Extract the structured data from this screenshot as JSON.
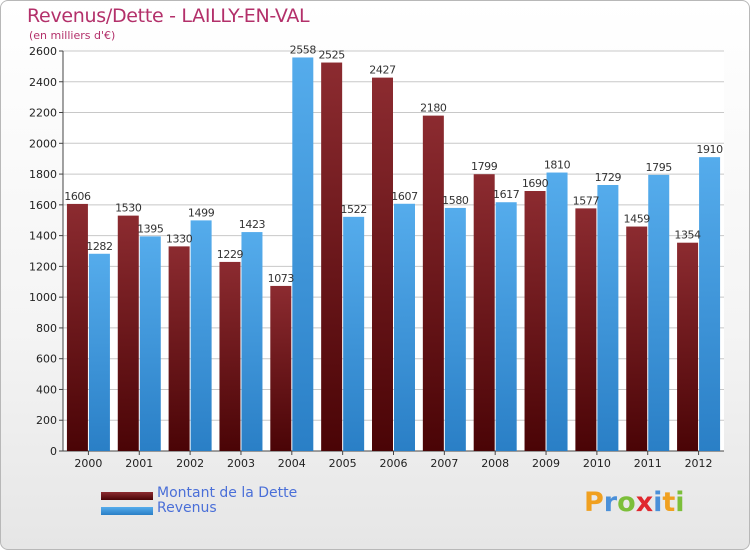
{
  "header": {
    "title": "Revenus/Dette - LAILLY-EN-VAL",
    "subtitle": "(en milliers d'€)"
  },
  "colors": {
    "dette": "#7a1a1e",
    "revenus": "#3d9be3",
    "title": "#b3306a",
    "legend_text": "#4a6fd8"
  },
  "legend": {
    "items": [
      {
        "label": "Montant de la Dette",
        "color": "#7a1a1e"
      },
      {
        "label": "Revenus",
        "color": "#3d9be3"
      }
    ]
  },
  "logo": {
    "letters": [
      "P",
      "r",
      "o",
      "x",
      "i",
      "t",
      "i"
    ],
    "colors": [
      "#f0a020",
      "#4a90d9",
      "#7cbf3a",
      "#e0282e",
      "#4a90d9",
      "#f0a020",
      "#7cbf3a"
    ]
  },
  "chart_data": {
    "type": "bar",
    "categories": [
      "2000",
      "2001",
      "2002",
      "2003",
      "2004",
      "2005",
      "2006",
      "2007",
      "2008",
      "2009",
      "2010",
      "2011",
      "2012"
    ],
    "series": [
      {
        "name": "Montant de la Dette",
        "values": [
          1606,
          1530,
          1330,
          1229,
          1073,
          2525,
          2427,
          2180,
          1799,
          1690,
          1577,
          1459,
          1354
        ]
      },
      {
        "name": "Revenus",
        "values": [
          1282,
          1395,
          1499,
          1423,
          2558,
          1522,
          1607,
          1580,
          1617,
          1810,
          1729,
          1795,
          1910
        ]
      }
    ],
    "value_labels": [
      [
        "1606",
        "1530",
        "1330",
        "1229",
        "1073",
        "2525",
        "2427",
        "2180",
        "1799",
        "1690",
        "1577",
        "1459",
        "1354"
      ],
      [
        "1282",
        "1395",
        "1499",
        "1423",
        "2558",
        "1522",
        "1607",
        "1580",
        "1617",
        "1810",
        "1729",
        "1795",
        "1910"
      ]
    ],
    "yticks": [
      0,
      200,
      400,
      600,
      800,
      1000,
      1200,
      1400,
      1600,
      1800,
      2000,
      2200,
      2400,
      2600
    ],
    "ylim": [
      0,
      2600
    ],
    "grid": true
  }
}
